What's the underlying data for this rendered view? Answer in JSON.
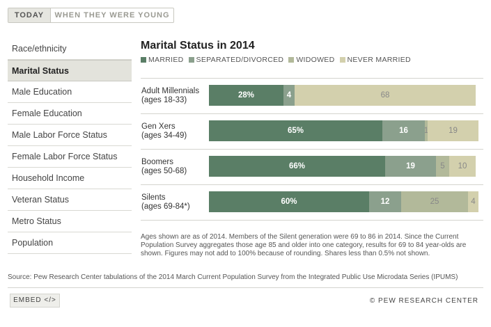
{
  "toggle": {
    "today": "TODAY",
    "young": "WHEN THEY WERE YOUNG"
  },
  "sidebar": {
    "items": [
      "Race/ethnicity",
      "Marital Status",
      "Male Education",
      "Female Education",
      "Male Labor Force Status",
      "Female Labor Force Status",
      "Household Income",
      "Veteran Status",
      "Metro Status",
      "Population"
    ],
    "active_index": 1
  },
  "chart_data": {
    "type": "bar",
    "orientation": "horizontal",
    "stacked": true,
    "title": "Marital Status in 2014",
    "categories": [
      "Adult Millennials",
      "Gen Xers",
      "Boomers",
      "Silents"
    ],
    "category_sublabels": [
      "(ages 18-33)",
      "(ages 34-49)",
      "(ages 50-68)",
      "(ages 69-84*)"
    ],
    "series": [
      {
        "name": "MARRIED",
        "color": "#5a7e66",
        "values": [
          28,
          65,
          66,
          60
        ],
        "labels": [
          "28%",
          "65%",
          "66%",
          "60%"
        ]
      },
      {
        "name": "SEPARATED/DIVORCED",
        "color": "#8ba08d",
        "values": [
          4,
          16,
          19,
          12
        ],
        "labels": [
          "4",
          "16",
          "19",
          "12"
        ]
      },
      {
        "name": "WIDOWED",
        "color": "#b2b99a",
        "values": [
          0,
          1,
          5,
          25
        ],
        "labels": [
          "",
          "1",
          "5",
          "25"
        ]
      },
      {
        "name": "NEVER MARRIED",
        "color": "#d3d0ad",
        "values": [
          68,
          19,
          10,
          4
        ],
        "labels": [
          "68",
          "19",
          "10",
          "4"
        ]
      }
    ],
    "xlim": [
      0,
      100
    ]
  },
  "note": "Ages shown are as of 2014. Members of the Silent generation were 69 to 86 in 2014. Since the Current Population Survey aggregates those age 85 and older into one category, results for 69 to 84 year-olds are shown. Figures may not add to 100% because of rounding. Shares less than 0.5% not shown.",
  "source": "Source: Pew Research Center tabulations of the 2014 March Current Population Survey from the Integrated Public Use Microdata Series (IPUMS)",
  "footer": {
    "embed": "EMBED </>",
    "copyright": "© PEW RESEARCH CENTER"
  }
}
